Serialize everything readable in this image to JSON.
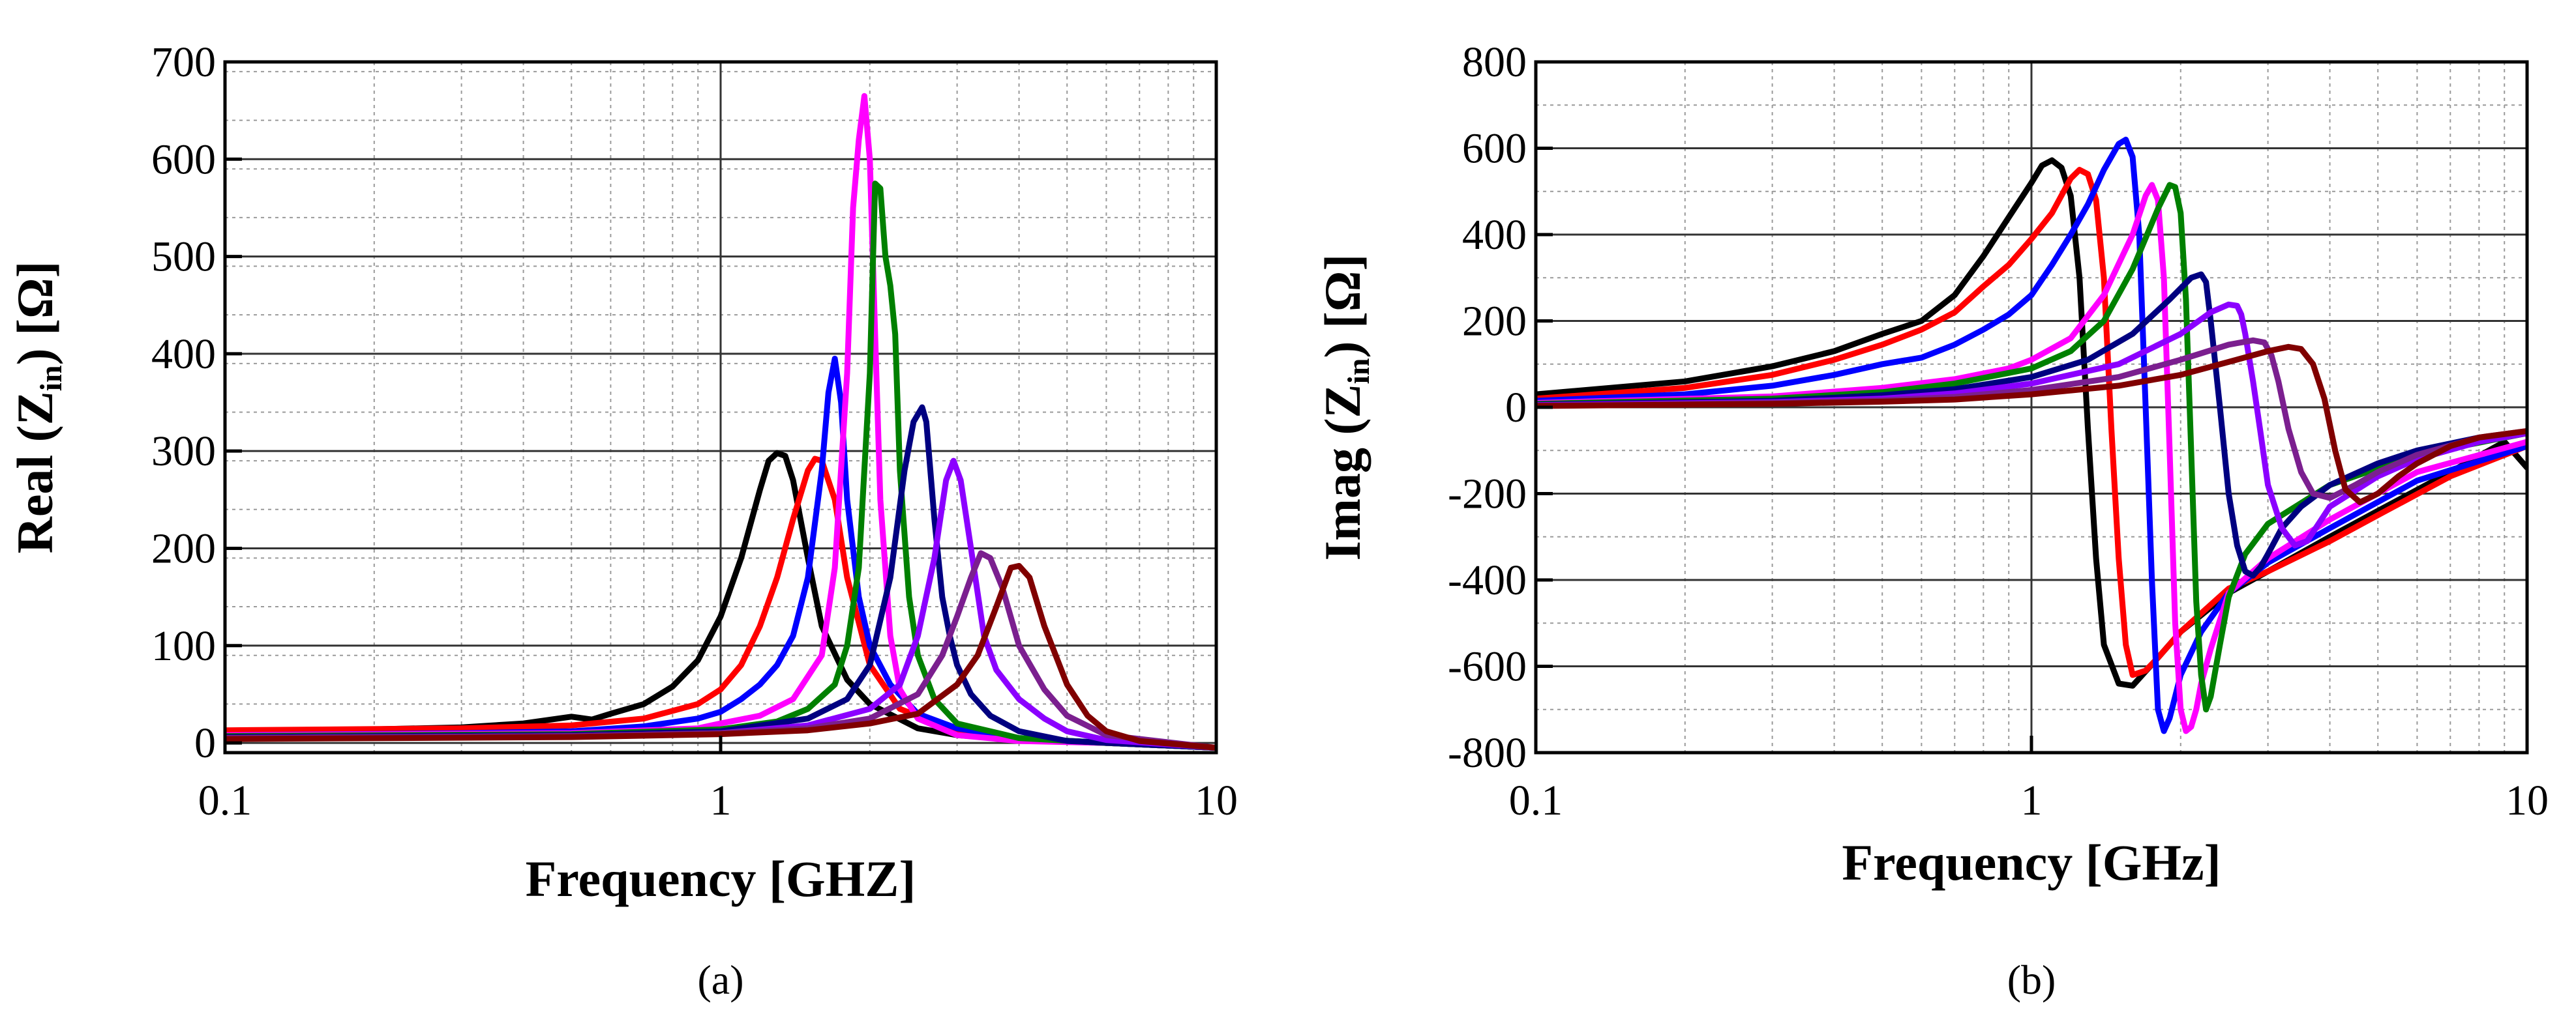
{
  "chart_data": [
    {
      "type": "line",
      "panel_label": "(a)",
      "panel_letter": "a",
      "xlabel": "Frequency [GHZ]",
      "ylabel_prefix": "Real (Z",
      "ylabel_sub": "in",
      "ylabel_suffix": ") [Ω]",
      "x_scale": "log",
      "xlim": [
        0.1,
        10
      ],
      "ylim": [
        -10,
        700
      ],
      "xticks": [
        0.1,
        1,
        10
      ],
      "xtick_labels": [
        "0.1",
        "1",
        "10"
      ],
      "yticks": [
        0,
        100,
        200,
        300,
        400,
        500,
        600,
        700
      ],
      "ytick_labels": [
        "0",
        "100",
        "200",
        "300",
        "400",
        "500",
        "600",
        "700"
      ],
      "grid": true,
      "series": [
        {
          "name": "black",
          "color": "#000000",
          "x": [
            0.1,
            0.2,
            0.3,
            0.4,
            0.5,
            0.55,
            0.6,
            0.7,
            0.8,
            0.9,
            1.0,
            1.1,
            1.2,
            1.25,
            1.3,
            1.35,
            1.4,
            1.5,
            1.6,
            1.8,
            2.0,
            2.5,
            3.0,
            4.0,
            6.0,
            10.0
          ],
          "y": [
            12,
            14,
            16,
            20,
            27,
            24,
            30,
            40,
            58,
            85,
            130,
            190,
            260,
            290,
            298,
            295,
            270,
            190,
            120,
            65,
            40,
            15,
            8,
            3,
            0,
            -5
          ]
        },
        {
          "name": "red",
          "color": "#ff0000",
          "x": [
            0.1,
            0.3,
            0.5,
            0.7,
            0.9,
            1.0,
            1.1,
            1.2,
            1.3,
            1.4,
            1.5,
            1.55,
            1.6,
            1.7,
            1.8,
            2.0,
            2.3,
            3.0,
            4.0,
            6.0,
            10.0
          ],
          "y": [
            13,
            15,
            18,
            25,
            40,
            55,
            80,
            120,
            170,
            230,
            280,
            292,
            290,
            250,
            170,
            80,
            35,
            12,
            4,
            0,
            -5
          ]
        },
        {
          "name": "blue",
          "color": "#0000ff",
          "x": [
            0.1,
            0.3,
            0.5,
            0.7,
            0.9,
            1.0,
            1.1,
            1.2,
            1.3,
            1.4,
            1.5,
            1.6,
            1.65,
            1.7,
            1.75,
            1.8,
            1.9,
            2.0,
            2.2,
            2.5,
            3.0,
            4.0,
            6.0,
            10.0
          ],
          "y": [
            8,
            10,
            12,
            17,
            25,
            32,
            45,
            60,
            80,
            110,
            170,
            280,
            360,
            395,
            350,
            250,
            150,
            100,
            60,
            30,
            15,
            5,
            0,
            -5
          ]
        },
        {
          "name": "magenta",
          "color": "#ff00ff",
          "x": [
            0.1,
            0.5,
            0.9,
            1.0,
            1.2,
            1.4,
            1.6,
            1.7,
            1.8,
            1.85,
            1.9,
            1.95,
            2.0,
            2.05,
            2.1,
            2.2,
            2.3,
            2.5,
            3.0,
            4.0,
            6.0,
            10.0
          ],
          "y": [
            8,
            10,
            15,
            20,
            28,
            45,
            90,
            180,
            380,
            550,
            620,
            665,
            600,
            420,
            250,
            110,
            55,
            25,
            8,
            2,
            0,
            -5
          ]
        },
        {
          "name": "green",
          "color": "#008000",
          "x": [
            0.1,
            0.5,
            1.0,
            1.3,
            1.5,
            1.7,
            1.8,
            1.9,
            2.0,
            2.05,
            2.1,
            2.15,
            2.2,
            2.25,
            2.3,
            2.4,
            2.5,
            2.7,
            3.0,
            4.0,
            6.0,
            10.0
          ],
          "y": [
            7,
            9,
            14,
            22,
            35,
            60,
            100,
            180,
            380,
            575,
            570,
            500,
            470,
            420,
            280,
            150,
            90,
            45,
            20,
            5,
            0,
            -5
          ]
        },
        {
          "name": "navy",
          "color": "#000080",
          "x": [
            0.1,
            0.5,
            1.0,
            1.5,
            1.8,
            2.0,
            2.2,
            2.35,
            2.45,
            2.55,
            2.6,
            2.7,
            2.8,
            2.9,
            3.0,
            3.2,
            3.5,
            4.0,
            5.0,
            10.0
          ],
          "y": [
            6,
            8,
            12,
            25,
            45,
            80,
            170,
            280,
            330,
            345,
            330,
            230,
            150,
            110,
            80,
            50,
            28,
            12,
            2,
            -5
          ]
        },
        {
          "name": "violet",
          "color": "#8b00ff",
          "x": [
            0.1,
            0.5,
            1.0,
            1.5,
            2.0,
            2.3,
            2.5,
            2.7,
            2.85,
            2.95,
            3.05,
            3.2,
            3.4,
            3.6,
            4.0,
            4.5,
            5.0,
            6.0,
            10.0
          ],
          "y": [
            5,
            7,
            10,
            18,
            35,
            60,
            110,
            190,
            270,
            290,
            270,
            200,
            110,
            75,
            45,
            25,
            12,
            3,
            -5
          ]
        },
        {
          "name": "purple",
          "color": "#7b1f8f",
          "x": [
            0.1,
            0.5,
            1.0,
            1.5,
            2.0,
            2.5,
            2.8,
            3.0,
            3.2,
            3.35,
            3.5,
            3.7,
            4.0,
            4.5,
            5.0,
            6.0,
            10.0
          ],
          "y": [
            5,
            7,
            10,
            15,
            25,
            50,
            90,
            130,
            170,
            195,
            190,
            160,
            100,
            55,
            28,
            8,
            -5
          ]
        },
        {
          "name": "maroon",
          "color": "#800000",
          "x": [
            0.1,
            0.5,
            1.0,
            1.5,
            2.0,
            2.5,
            3.0,
            3.3,
            3.6,
            3.85,
            4.0,
            4.2,
            4.5,
            5.0,
            5.5,
            6.0,
            7.0,
            10.0
          ],
          "y": [
            4,
            6,
            9,
            13,
            20,
            30,
            60,
            90,
            140,
            180,
            182,
            170,
            120,
            60,
            28,
            12,
            2,
            -5
          ]
        }
      ]
    },
    {
      "type": "line",
      "panel_label": "(b)",
      "panel_letter": "b",
      "xlabel": "Frequency [GHz]",
      "ylabel_prefix": "Imag (Z",
      "ylabel_sub": "in",
      "ylabel_suffix": ") [Ω]",
      "x_scale": "log",
      "xlim": [
        0.1,
        10
      ],
      "ylim": [
        -800,
        800
      ],
      "xticks": [
        0.1,
        1,
        10
      ],
      "xtick_labels": [
        "0.1",
        "1",
        "10"
      ],
      "yticks": [
        -800,
        -600,
        -400,
        -200,
        0,
        200,
        400,
        600,
        800
      ],
      "ytick_labels": [
        "-800",
        "-600",
        "-400",
        "-200",
        "0",
        "200",
        "400",
        "600",
        "800"
      ],
      "grid": true,
      "series": [
        {
          "name": "black",
          "color": "#000000",
          "x": [
            0.1,
            0.2,
            0.3,
            0.4,
            0.5,
            0.6,
            0.7,
            0.8,
            0.9,
            1.0,
            1.05,
            1.1,
            1.15,
            1.2,
            1.25,
            1.3,
            1.35,
            1.4,
            1.5,
            1.6,
            1.8,
            2.0,
            2.5,
            3.0,
            4.0,
            5.0,
            7.0,
            9.0,
            10.0
          ],
          "y": [
            30,
            60,
            95,
            130,
            170,
            200,
            260,
            350,
            440,
            520,
            560,
            572,
            555,
            490,
            300,
            -50,
            -350,
            -550,
            -640,
            -645,
            -580,
            -520,
            -430,
            -380,
            -300,
            -240,
            -150,
            -80,
            -140
          ]
        },
        {
          "name": "red",
          "color": "#ff0000",
          "x": [
            0.1,
            0.2,
            0.3,
            0.4,
            0.5,
            0.6,
            0.7,
            0.8,
            0.9,
            1.0,
            1.1,
            1.2,
            1.25,
            1.3,
            1.35,
            1.4,
            1.45,
            1.5,
            1.55,
            1.6,
            1.7,
            1.8,
            2.0,
            2.5,
            3.0,
            4.0,
            5.0,
            7.0,
            10.0
          ],
          "y": [
            20,
            45,
            75,
            110,
            145,
            180,
            220,
            280,
            330,
            390,
            450,
            530,
            550,
            540,
            480,
            300,
            -50,
            -350,
            -550,
            -620,
            -610,
            -580,
            -520,
            -420,
            -380,
            -310,
            -250,
            -160,
            -90
          ]
        },
        {
          "name": "blue",
          "color": "#0000ff",
          "x": [
            0.1,
            0.2,
            0.3,
            0.4,
            0.5,
            0.6,
            0.7,
            0.8,
            0.9,
            1.0,
            1.1,
            1.2,
            1.3,
            1.4,
            1.5,
            1.55,
            1.6,
            1.65,
            1.7,
            1.75,
            1.8,
            1.85,
            1.9,
            2.0,
            2.2,
            2.5,
            3.0,
            4.0,
            6.0,
            10.0
          ],
          "y": [
            15,
            30,
            50,
            75,
            100,
            115,
            145,
            180,
            215,
            260,
            330,
            400,
            470,
            550,
            610,
            620,
            580,
            400,
            0,
            -400,
            -700,
            -750,
            -720,
            -620,
            -520,
            -430,
            -360,
            -280,
            -170,
            -90
          ]
        },
        {
          "name": "magenta",
          "color": "#ff00ff",
          "x": [
            0.1,
            0.3,
            0.5,
            0.7,
            0.9,
            1.0,
            1.2,
            1.4,
            1.6,
            1.7,
            1.75,
            1.8,
            1.85,
            1.9,
            1.95,
            2.0,
            2.05,
            2.1,
            2.15,
            2.2,
            2.3,
            2.5,
            3.0,
            4.0,
            6.0,
            10.0
          ],
          "y": [
            10,
            25,
            45,
            65,
            90,
            110,
            160,
            260,
            400,
            490,
            515,
            480,
            300,
            -100,
            -500,
            -700,
            -750,
            -740,
            -700,
            -640,
            -560,
            -430,
            -350,
            -260,
            -150,
            -80
          ]
        },
        {
          "name": "green",
          "color": "#008000",
          "x": [
            0.1,
            0.3,
            0.5,
            0.7,
            1.0,
            1.2,
            1.4,
            1.6,
            1.8,
            1.9,
            1.95,
            2.0,
            2.05,
            2.1,
            2.15,
            2.2,
            2.25,
            2.3,
            2.4,
            2.5,
            2.7,
            3.0,
            4.0,
            6.0,
            10.0
          ],
          "y": [
            8,
            20,
            35,
            55,
            90,
            130,
            200,
            320,
            460,
            515,
            510,
            450,
            250,
            -100,
            -450,
            -620,
            -700,
            -670,
            -550,
            -440,
            -340,
            -270,
            -180,
            -110,
            -60
          ]
        },
        {
          "name": "navy",
          "color": "#000080",
          "x": [
            0.1,
            0.3,
            0.5,
            0.7,
            1.0,
            1.3,
            1.6,
            1.9,
            2.1,
            2.2,
            2.25,
            2.3,
            2.4,
            2.5,
            2.6,
            2.7,
            2.8,
            2.9,
            3.0,
            3.2,
            3.5,
            4.0,
            5.0,
            6.0,
            8.0,
            10.0
          ],
          "y": [
            6,
            15,
            28,
            42,
            70,
            110,
            170,
            250,
            300,
            308,
            290,
            200,
            0,
            -200,
            -320,
            -380,
            -390,
            -370,
            -340,
            -280,
            -230,
            -180,
            -130,
            -100,
            -70,
            -60
          ]
        },
        {
          "name": "violet",
          "color": "#8b00ff",
          "x": [
            0.1,
            0.3,
            0.5,
            0.7,
            1.0,
            1.5,
            2.0,
            2.3,
            2.5,
            2.6,
            2.65,
            2.7,
            2.8,
            2.9,
            3.0,
            3.2,
            3.4,
            3.6,
            4.0,
            5.0,
            6.0,
            8.0,
            10.0
          ],
          "y": [
            5,
            12,
            20,
            32,
            55,
            100,
            170,
            220,
            238,
            235,
            215,
            170,
            60,
            -60,
            -180,
            -280,
            -320,
            -310,
            -230,
            -160,
            -120,
            -80,
            -60
          ]
        },
        {
          "name": "purple",
          "color": "#7b1f8f",
          "x": [
            0.1,
            0.3,
            0.5,
            0.7,
            1.0,
            1.5,
            2.0,
            2.5,
            2.8,
            2.95,
            3.05,
            3.15,
            3.3,
            3.5,
            3.7,
            4.0,
            4.5,
            5.0,
            6.0,
            8.0,
            10.0
          ],
          "y": [
            4,
            10,
            16,
            24,
            40,
            70,
            110,
            145,
            155,
            150,
            120,
            60,
            -50,
            -150,
            -200,
            -210,
            -180,
            -150,
            -110,
            -70,
            -55
          ]
        },
        {
          "name": "maroon",
          "color": "#800000",
          "x": [
            0.1,
            0.3,
            0.5,
            0.7,
            1.0,
            1.5,
            2.0,
            2.5,
            3.0,
            3.3,
            3.5,
            3.7,
            3.9,
            4.1,
            4.3,
            4.6,
            5.0,
            5.5,
            6.0,
            7.0,
            8.0,
            10.0
          ],
          "y": [
            3,
            8,
            13,
            18,
            30,
            50,
            75,
            105,
            130,
            140,
            135,
            100,
            20,
            -100,
            -190,
            -220,
            -200,
            -160,
            -130,
            -90,
            -70,
            -55
          ]
        }
      ]
    }
  ]
}
